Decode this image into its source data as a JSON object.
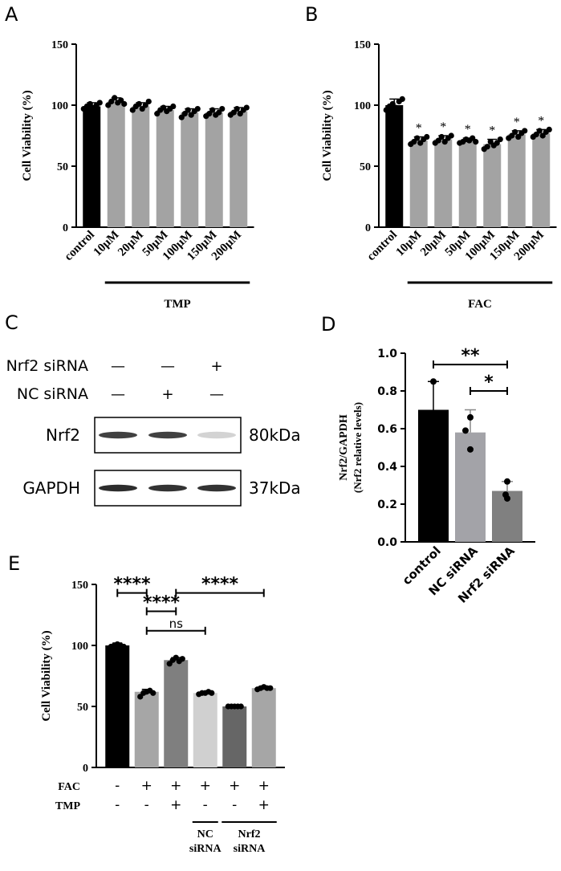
{
  "panels": {
    "A": "A",
    "B": "B",
    "C": "C",
    "D": "D",
    "E": "E"
  },
  "western_blot": {
    "rows": [
      {
        "label": "Nrf2 siRNA",
        "signs": [
          "—",
          "—",
          "+"
        ]
      },
      {
        "label": "NC siRNA",
        "signs": [
          "—",
          "+",
          "—"
        ]
      }
    ],
    "bands": [
      {
        "name": "Nrf2",
        "size": "80kDa",
        "intensities": [
          0.85,
          0.85,
          0.12
        ]
      },
      {
        "name": "GAPDH",
        "size": "37kDa",
        "intensities": [
          0.95,
          0.92,
          0.92
        ]
      }
    ]
  },
  "colors": {
    "black": "#000000",
    "gray": "#a3a3a8",
    "dark_gray": "#808080",
    "mid_gray": "#7f7f7f",
    "light_gray": "#d0d0d0",
    "charcoal": "#666666",
    "gray_e6": "#a6a6a6"
  },
  "chart_data": [
    {
      "id": "A",
      "type": "bar",
      "ylabel": "Cell Viability (%)",
      "ylim": [
        0,
        150
      ],
      "yticks": [
        0,
        50,
        100,
        150
      ],
      "categories": [
        "control",
        "10μM",
        "20μM",
        "50μM",
        "100μM",
        "150μM",
        "200μM"
      ],
      "values": [
        99,
        103,
        99,
        96,
        94,
        94,
        95
      ],
      "errors": [
        3,
        3,
        3,
        3,
        3,
        3,
        3
      ],
      "points": [
        [
          97,
          99,
          101,
          98,
          100,
          102
        ],
        [
          100,
          103,
          106,
          102,
          104,
          101
        ],
        [
          96,
          99,
          101,
          97,
          100,
          103
        ],
        [
          93,
          96,
          98,
          95,
          97,
          99
        ],
        [
          90,
          93,
          96,
          92,
          95,
          97
        ],
        [
          91,
          93,
          96,
          92,
          94,
          97
        ],
        [
          92,
          94,
          97,
          93,
          96,
          98
        ]
      ],
      "bar_colors": [
        "#000000",
        "#a3a3a3",
        "#a3a3a3",
        "#a3a3a3",
        "#a3a3a3",
        "#a3a3a3",
        "#a3a3a3"
      ],
      "group_label": "TMP",
      "group_span": [
        1,
        6
      ],
      "significance": []
    },
    {
      "id": "B",
      "type": "bar",
      "ylabel": "Cell Viability (%)",
      "ylim": [
        0,
        150
      ],
      "yticks": [
        0,
        50,
        100,
        150
      ],
      "categories": [
        "control",
        "10μM",
        "20μM",
        "50μM",
        "100μM",
        "150μM",
        "200μM"
      ],
      "values": [
        100,
        71,
        72,
        71,
        68,
        76,
        77
      ],
      "errors": [
        5,
        3,
        3,
        2,
        4,
        3,
        3
      ],
      "points": [
        [
          96,
          99,
          101,
          98,
          103,
          105
        ],
        [
          68,
          70,
          73,
          69,
          72,
          74
        ],
        [
          69,
          71,
          74,
          70,
          73,
          75
        ],
        [
          69,
          70,
          72,
          71,
          73,
          70
        ],
        [
          64,
          66,
          70,
          67,
          69,
          72
        ],
        [
          73,
          75,
          78,
          74,
          77,
          79
        ],
        [
          74,
          76,
          79,
          75,
          78,
          80
        ]
      ],
      "bar_colors": [
        "#000000",
        "#a3a3a3",
        "#a3a3a3",
        "#a3a3a3",
        "#a3a3a3",
        "#a3a3a3",
        "#a3a3a3"
      ],
      "group_label": "FAC",
      "group_span": [
        1,
        6
      ],
      "significance": [
        "",
        "*",
        "*",
        "*",
        "*",
        "*",
        "*"
      ]
    },
    {
      "id": "D",
      "type": "bar",
      "ylabel": "Nrf2/GAPDH",
      "ylabel2": "(Nrf2 relative levels)",
      "ylim": [
        0,
        1.0
      ],
      "yticks": [
        0.0,
        0.2,
        0.4,
        0.6,
        0.8,
        1.0
      ],
      "ytick_labels": [
        "0.0",
        "0.2",
        "0.4",
        "0.6",
        "0.8",
        "1.0"
      ],
      "categories": [
        "control",
        "NC siRNA",
        "Nrf2 siRNA"
      ],
      "values": [
        0.7,
        0.58,
        0.27
      ],
      "errors": [
        0.15,
        0.12,
        0.05
      ],
      "points": [
        [
          0.85,
          0.62,
          0.64
        ],
        [
          0.66,
          0.59,
          0.49
        ],
        [
          0.32,
          0.25,
          0.23
        ]
      ],
      "bar_colors": [
        "#000000",
        "#a3a3a8",
        "#808080"
      ],
      "brackets": [
        {
          "from": 0,
          "to": 2,
          "label": "**",
          "y": 0.94
        },
        {
          "from": 1,
          "to": 2,
          "label": "*",
          "y": 0.8
        }
      ]
    },
    {
      "id": "E",
      "type": "bar",
      "ylabel": "Cell Viability (%)",
      "ylim": [
        0,
        150
      ],
      "yticks": [
        0,
        50,
        100,
        150
      ],
      "values": [
        100,
        62,
        88,
        61,
        50,
        65
      ],
      "errors": [
        2,
        2,
        2,
        1,
        1,
        1
      ],
      "points": [
        [
          99,
          100,
          101,
          100,
          99
        ],
        [
          58,
          61,
          62,
          63,
          61
        ],
        [
          85,
          88,
          90,
          87,
          89
        ],
        [
          60,
          61,
          61,
          62,
          61
        ],
        [
          50,
          50,
          50,
          50,
          50
        ],
        [
          64,
          65,
          66,
          65,
          65
        ]
      ],
      "bar_colors": [
        "#000000",
        "#a6a6a6",
        "#7f7f7f",
        "#d0d0d0",
        "#666666",
        "#a6a6a6"
      ],
      "treatment_rows": [
        {
          "label": "FAC",
          "signs": [
            "-",
            "+",
            "+",
            "+",
            "+",
            "+"
          ]
        },
        {
          "label": "TMP",
          "signs": [
            "-",
            "-",
            "+",
            "-",
            "-",
            "+"
          ]
        }
      ],
      "sirna_groups": [
        {
          "line1": "NC",
          "line2": "siRNA",
          "span": [
            3,
            3
          ]
        },
        {
          "line1": "Nrf2",
          "line2": "siRNA",
          "span": [
            4,
            5
          ]
        }
      ],
      "brackets": [
        {
          "from": 0,
          "to": 1,
          "label": "****",
          "y": 143
        },
        {
          "from": 2,
          "to": 5,
          "label": "****",
          "y": 143
        },
        {
          "from": 1,
          "to": 2,
          "label": "****",
          "y": 128
        },
        {
          "from": 1,
          "to": 3,
          "label": "ns",
          "y": 112
        }
      ]
    }
  ]
}
